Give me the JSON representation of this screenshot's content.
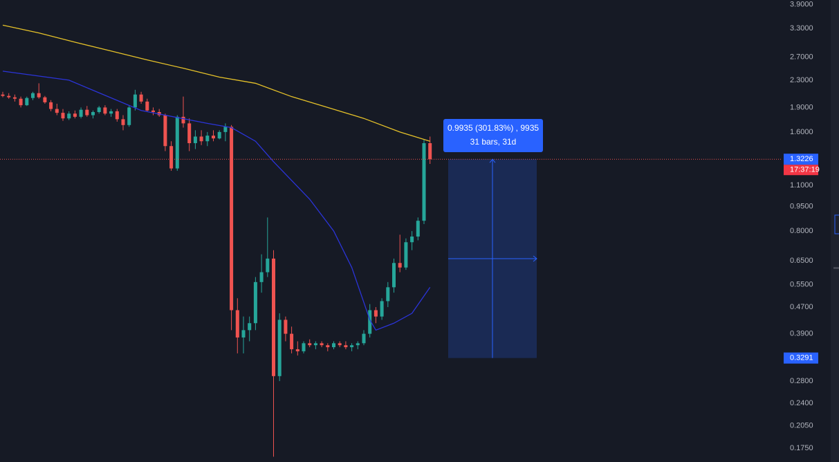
{
  "chart_data": {
    "type": "candlestick",
    "log_scale": true,
    "grid": false,
    "up_color": "#26a69a",
    "down_color": "#ef5350",
    "ylim": [
      0.159,
      4.03
    ],
    "yticks": [
      {
        "value": 3.9,
        "label": "3.9000"
      },
      {
        "value": 3.3,
        "label": "3.3000"
      },
      {
        "value": 2.7,
        "label": "2.7000"
      },
      {
        "value": 2.3,
        "label": "2.3000"
      },
      {
        "value": 1.9,
        "label": "1.9000"
      },
      {
        "value": 1.6,
        "label": "1.6000"
      },
      {
        "value": 1.1,
        "label": "1.1000"
      },
      {
        "value": 0.95,
        "label": "0.9500"
      },
      {
        "value": 0.8,
        "label": "0.8000"
      },
      {
        "value": 0.65,
        "label": "0.6500"
      },
      {
        "value": 0.55,
        "label": "0.5500"
      },
      {
        "value": 0.47,
        "label": "0.4700"
      },
      {
        "value": 0.39,
        "label": "0.3900"
      },
      {
        "value": 0.28,
        "label": "0.2800"
      },
      {
        "value": 0.24,
        "label": "0.2400"
      },
      {
        "value": 0.205,
        "label": "0.2050"
      },
      {
        "value": 0.175,
        "label": "0.1750"
      }
    ],
    "ohlc": [
      [
        2.08,
        2.12,
        2.04,
        2.06
      ],
      [
        2.06,
        2.1,
        2.02,
        2.04
      ],
      [
        2.04,
        2.08,
        1.98,
        2.02
      ],
      [
        2.02,
        2.05,
        1.9,
        1.93
      ],
      [
        1.93,
        2.05,
        1.92,
        2.03
      ],
      [
        2.03,
        2.12,
        2.0,
        2.1
      ],
      [
        2.1,
        2.25,
        2.02,
        2.04
      ],
      [
        2.04,
        2.06,
        1.95,
        1.97
      ],
      [
        1.97,
        2.0,
        1.85,
        1.88
      ],
      [
        1.88,
        1.95,
        1.8,
        1.83
      ],
      [
        1.83,
        1.88,
        1.73,
        1.76
      ],
      [
        1.76,
        1.85,
        1.74,
        1.82
      ],
      [
        1.82,
        1.86,
        1.76,
        1.78
      ],
      [
        1.78,
        1.9,
        1.76,
        1.87
      ],
      [
        1.87,
        1.92,
        1.78,
        1.8
      ],
      [
        1.8,
        1.86,
        1.76,
        1.84
      ],
      [
        1.84,
        1.92,
        1.82,
        1.9
      ],
      [
        1.9,
        1.93,
        1.8,
        1.82
      ],
      [
        1.82,
        1.88,
        1.78,
        1.85
      ],
      [
        1.85,
        1.88,
        1.72,
        1.75
      ],
      [
        1.75,
        1.8,
        1.62,
        1.68
      ],
      [
        1.68,
        1.92,
        1.66,
        1.9
      ],
      [
        1.9,
        2.15,
        1.86,
        2.08
      ],
      [
        2.08,
        2.12,
        1.95,
        1.98
      ],
      [
        1.98,
        2.02,
        1.84,
        1.86
      ],
      [
        1.86,
        1.9,
        1.8,
        1.84
      ],
      [
        1.84,
        1.88,
        1.78,
        1.8
      ],
      [
        1.8,
        1.82,
        1.4,
        1.45
      ],
      [
        1.45,
        1.5,
        1.22,
        1.24
      ],
      [
        1.24,
        1.8,
        1.22,
        1.78
      ],
      [
        1.78,
        2.05,
        1.65,
        1.7
      ],
      [
        1.7,
        1.76,
        1.4,
        1.48
      ],
      [
        1.48,
        1.62,
        1.42,
        1.55
      ],
      [
        1.55,
        1.62,
        1.46,
        1.5
      ],
      [
        1.5,
        1.6,
        1.45,
        1.56
      ],
      [
        1.56,
        1.62,
        1.5,
        1.53
      ],
      [
        1.53,
        1.62,
        1.52,
        1.6
      ],
      [
        1.6,
        1.7,
        1.5,
        1.66
      ],
      [
        1.66,
        1.68,
        0.4,
        0.46
      ],
      [
        0.46,
        0.5,
        0.34,
        0.38
      ],
      [
        0.38,
        0.44,
        0.34,
        0.4
      ],
      [
        0.4,
        0.44,
        0.37,
        0.42
      ],
      [
        0.42,
        0.58,
        0.4,
        0.56
      ],
      [
        0.56,
        0.68,
        0.52,
        0.6
      ],
      [
        0.6,
        0.88,
        0.58,
        0.66
      ],
      [
        0.66,
        0.7,
        0.165,
        0.29
      ],
      [
        0.29,
        0.45,
        0.28,
        0.43
      ],
      [
        0.43,
        0.44,
        0.37,
        0.39
      ],
      [
        0.39,
        0.41,
        0.34,
        0.35
      ],
      [
        0.35,
        0.37,
        0.335,
        0.345
      ],
      [
        0.345,
        0.37,
        0.34,
        0.365
      ],
      [
        0.365,
        0.375,
        0.355,
        0.36
      ],
      [
        0.36,
        0.37,
        0.35,
        0.365
      ],
      [
        0.365,
        0.37,
        0.355,
        0.36
      ],
      [
        0.36,
        0.365,
        0.345,
        0.355
      ],
      [
        0.355,
        0.37,
        0.35,
        0.365
      ],
      [
        0.365,
        0.37,
        0.355,
        0.36
      ],
      [
        0.36,
        0.37,
        0.35,
        0.355
      ],
      [
        0.355,
        0.365,
        0.345,
        0.36
      ],
      [
        0.36,
        0.37,
        0.35,
        0.365
      ],
      [
        0.365,
        0.4,
        0.36,
        0.39
      ],
      [
        0.39,
        0.48,
        0.38,
        0.46
      ],
      [
        0.46,
        0.47,
        0.42,
        0.44
      ],
      [
        0.44,
        0.5,
        0.43,
        0.49
      ],
      [
        0.49,
        0.56,
        0.47,
        0.54
      ],
      [
        0.54,
        0.66,
        0.52,
        0.64
      ],
      [
        0.64,
        0.78,
        0.6,
        0.62
      ],
      [
        0.62,
        0.76,
        0.61,
        0.74
      ],
      [
        0.74,
        0.8,
        0.7,
        0.77
      ],
      [
        0.77,
        0.88,
        0.75,
        0.86
      ],
      [
        0.86,
        1.52,
        0.84,
        1.48
      ],
      [
        1.48,
        1.55,
        1.28,
        1.3226
      ]
    ],
    "series": [
      {
        "color": "#e6c229",
        "x": [
          0,
          6,
          12,
          18,
          24,
          30,
          36,
          42,
          48,
          54,
          60,
          66,
          71
        ],
        "values": [
          3.38,
          3.2,
          3.0,
          2.82,
          2.65,
          2.5,
          2.35,
          2.25,
          2.05,
          1.9,
          1.76,
          1.6,
          1.5
        ]
      },
      {
        "color": "#2b34d9",
        "x": [
          0,
          11,
          23,
          34,
          38,
          42,
          45,
          51,
          55,
          58,
          61,
          62,
          65,
          68,
          71
        ],
        "values": [
          2.45,
          2.3,
          1.86,
          1.7,
          1.65,
          1.5,
          1.3,
          1.0,
          0.8,
          0.62,
          0.43,
          0.4,
          0.42,
          0.45,
          0.54
        ]
      }
    ],
    "current_price": 1.3226,
    "countdown": "17:37:19",
    "measure": {
      "low": 0.3291,
      "line1": "0.9935 (301.83%) , 9935",
      "line2": "31 bars, 31d"
    }
  }
}
